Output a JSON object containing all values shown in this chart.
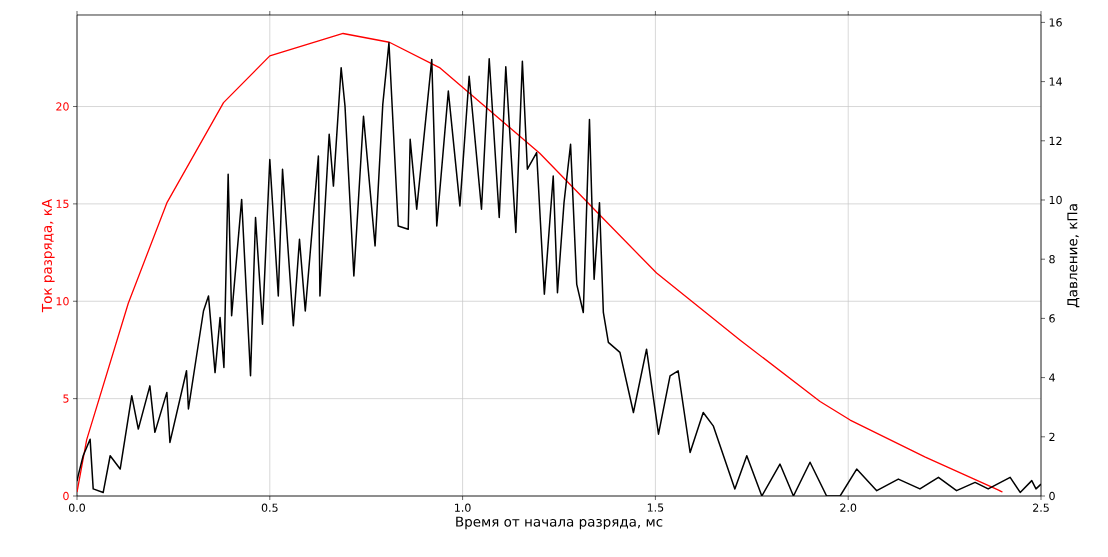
{
  "chart_data": {
    "type": "line",
    "xlabel": "Время от начала разряда, мс",
    "ylabel": "Ток разряда, кА",
    "y2label": "Давление, кПа",
    "grid": true,
    "xlim": [
      0,
      2.5
    ],
    "xticks": [
      {
        "value": 0,
        "label": "0.0"
      },
      0.5,
      {
        "value": 1,
        "label": "1.0"
      },
      1.5,
      {
        "value": 2,
        "label": "2.0"
      },
      2.5
    ],
    "ylim": [
      0,
      24.7
    ],
    "yticks": [
      0,
      5,
      10,
      15,
      20
    ],
    "y2lim": [
      0,
      16.25
    ],
    "y2ticks": [
      0,
      2,
      4,
      6,
      8,
      10,
      12,
      14,
      16
    ],
    "series": [
      {
        "color": "#ff0000",
        "x": [
          0.0,
          0.025,
          0.133,
          0.233,
          0.38,
          0.5,
          0.69,
          0.81,
          0.94,
          0.993,
          1.2,
          1.357,
          1.503,
          1.72,
          1.927,
          2.005,
          2.2,
          2.39,
          2.4
        ],
        "values": [
          0.2,
          2.88,
          9.9,
          15.05,
          20.2,
          22.6,
          23.75,
          23.3,
          22.0,
          21.1,
          17.6,
          14.4,
          11.45,
          8.0,
          4.85,
          3.9,
          2.0,
          0.3,
          0.2
        ]
      },
      {
        "color": "#000000",
        "axis": "y2",
        "x": [
          0.0,
          0.003,
          0.016,
          0.034,
          0.042,
          0.068,
          0.086,
          0.112,
          0.142,
          0.159,
          0.189,
          0.202,
          0.233,
          0.241,
          0.284,
          0.289,
          0.31,
          0.328,
          0.341,
          0.358,
          0.371,
          0.381,
          0.392,
          0.401,
          0.427,
          0.45,
          0.463,
          0.481,
          0.5,
          0.522,
          0.533,
          0.561,
          0.577,
          0.592,
          0.626,
          0.63,
          0.654,
          0.665,
          0.685,
          0.695,
          0.718,
          0.743,
          0.773,
          0.793,
          0.809,
          0.833,
          0.859,
          0.864,
          0.881,
          0.92,
          0.933,
          0.963,
          0.993,
          1.017,
          1.049,
          1.069,
          1.095,
          1.112,
          1.138,
          1.155,
          1.168,
          1.192,
          1.212,
          1.235,
          1.246,
          1.263,
          1.28,
          1.296,
          1.313,
          1.329,
          1.341,
          1.355,
          1.365,
          1.378,
          1.408,
          1.443,
          1.477,
          1.508,
          1.538,
          1.559,
          1.59,
          1.624,
          1.65,
          1.706,
          1.737,
          1.776,
          1.823,
          1.858,
          1.901,
          1.944,
          1.979,
          2.022,
          2.074,
          2.13,
          2.186,
          2.234,
          2.281,
          2.329,
          2.363,
          2.42,
          2.446,
          2.476,
          2.487,
          2.5
        ],
        "values": [
          0.5,
          0.69,
          1.36,
          1.92,
          0.24,
          0.12,
          1.36,
          0.91,
          3.39,
          2.26,
          3.72,
          2.15,
          3.5,
          1.81,
          4.23,
          2.94,
          4.73,
          6.25,
          6.76,
          4.17,
          6.03,
          4.34,
          10.87,
          6.09,
          10.02,
          4.06,
          9.41,
          5.8,
          11.37,
          6.76,
          11.04,
          5.75,
          8.67,
          6.25,
          11.49,
          6.76,
          12.22,
          10.47,
          14.47,
          13.17,
          7.43,
          12.83,
          8.45,
          13.23,
          15.31,
          9.12,
          9.01,
          12.05,
          9.69,
          14.75,
          9.12,
          13.68,
          9.8,
          14.18,
          9.69,
          14.77,
          9.41,
          14.5,
          8.9,
          14.69,
          11.04,
          11.6,
          6.82,
          10.81,
          6.87,
          9.91,
          11.88,
          7.15,
          6.2,
          12.72,
          7.32,
          9.91,
          6.2,
          5.19,
          4.85,
          2.82,
          4.96,
          2.09,
          4.06,
          4.23,
          1.47,
          2.82,
          2.37,
          0.24,
          1.36,
          0.0,
          1.08,
          0.0,
          1.14,
          0.0,
          0.0,
          0.91,
          0.18,
          0.57,
          0.24,
          0.63,
          0.18,
          0.46,
          0.24,
          0.63,
          0.12,
          0.52,
          0.24,
          0.4
        ]
      }
    ]
  }
}
